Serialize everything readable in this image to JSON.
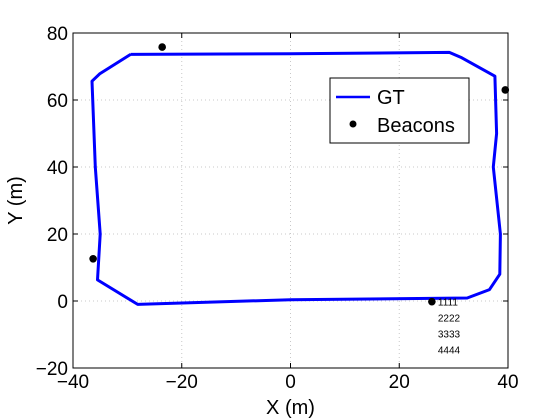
{
  "chart_data": {
    "type": "line",
    "title": "",
    "xlabel": "X (m)",
    "ylabel": "Y (m)",
    "xlim": [
      -40,
      40
    ],
    "ylim": [
      -20,
      80
    ],
    "xticks": [
      -40,
      -20,
      0,
      20,
      40
    ],
    "xtick_labels": [
      "−40",
      "−20",
      "0",
      "20",
      "40"
    ],
    "yticks": [
      -20,
      0,
      20,
      40,
      60,
      80
    ],
    "ytick_labels": [
      "−20",
      "0",
      "20",
      "40",
      "60",
      "80"
    ],
    "grid": true,
    "legend_position": "top-right",
    "series": [
      {
        "name": "GT",
        "color": "#0000ff",
        "marker": "line",
        "x": [
          -29.4,
          0,
          29.2,
          31.5,
          37.6,
          37.9,
          37.3,
          38.6,
          38.5,
          36.6,
          32.5,
          0,
          -28.1,
          -35.5,
          -35.0,
          -35.9,
          -36.5,
          -35.1,
          -29.4
        ],
        "y": [
          73.6,
          73.8,
          74.2,
          72.6,
          67.1,
          50.0,
          40.0,
          20.0,
          8.0,
          3.4,
          0.9,
          0.4,
          -1.0,
          6.3,
          20.0,
          40.0,
          65.6,
          67.8,
          73.6
        ]
      },
      {
        "name": "Beacons",
        "color": "#000000",
        "marker": "dot",
        "x": [
          -23.6,
          39.5,
          26.0,
          -36.3
        ],
        "y": [
          75.8,
          63.0,
          -0.2,
          12.6
        ]
      }
    ],
    "annotations": [
      "1111",
      "2222",
      "3333",
      "4444"
    ]
  }
}
